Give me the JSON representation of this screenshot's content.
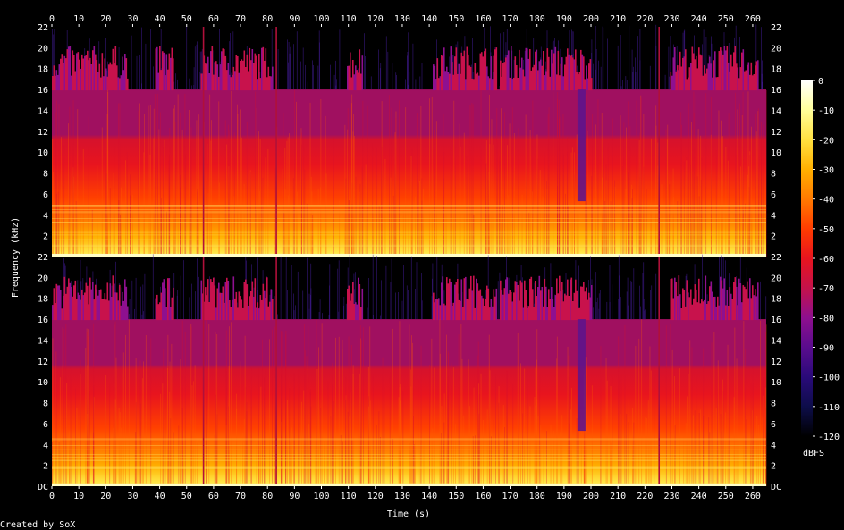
{
  "chart_data": {
    "type": "heatmap",
    "title": "",
    "xlabel": "Time (s)",
    "ylabel": "Frequency (kHz)",
    "xlim": [
      0,
      265
    ],
    "x_ticks": [
      "0",
      "10",
      "20",
      "30",
      "40",
      "50",
      "60",
      "70",
      "80",
      "90",
      "100",
      "110",
      "120",
      "130",
      "140",
      "150",
      "160",
      "170",
      "180",
      "190",
      "200",
      "210",
      "220",
      "230",
      "240",
      "250",
      "260"
    ],
    "y_ticks_top_channel": [
      "22",
      "20",
      "18",
      "16",
      "14",
      "12",
      "10",
      "8",
      "6",
      "4",
      "2"
    ],
    "y_ticks_bottom_channel": [
      "22",
      "20",
      "18",
      "16",
      "14",
      "12",
      "10",
      "8",
      "6",
      "4",
      "2",
      "DC"
    ],
    "ylim_khz": [
      0,
      22
    ],
    "channels": [
      {
        "name": "",
        "lowpass_cutoff_khz": 16
      },
      {
        "name": "",
        "lowpass_cutoff_khz": 16
      }
    ],
    "colorbar": {
      "unit": "dBFS",
      "ticks": [
        "0",
        "-10",
        "-20",
        "-30",
        "-40",
        "-50",
        "-60",
        "-70",
        "-80",
        "-90",
        "-100",
        "-110",
        "-120"
      ],
      "range": [
        -120,
        0
      ],
      "colors": [
        "#000000",
        "#0d0d4a",
        "#2a0a7a",
        "#5a0c8e",
        "#8e0f8e",
        "#c4124a",
        "#e8141e",
        "#ff3c00",
        "#ff7a00",
        "#ffb000",
        "#ffe040",
        "#ffff9a",
        "#ffffff"
      ]
    },
    "features": {
      "dropouts_s": [
        56,
        83,
        225
      ],
      "high_frequency_bursts_s": [
        [
          0,
          28
        ],
        [
          38,
          45
        ],
        [
          55,
          82
        ],
        [
          109,
          115
        ],
        [
          141,
          165
        ],
        [
          166,
          200
        ],
        [
          229,
          262
        ]
      ],
      "dip_region_s": [
        195,
        198
      ]
    }
  },
  "footer": {
    "credit": "Created by SoX"
  }
}
